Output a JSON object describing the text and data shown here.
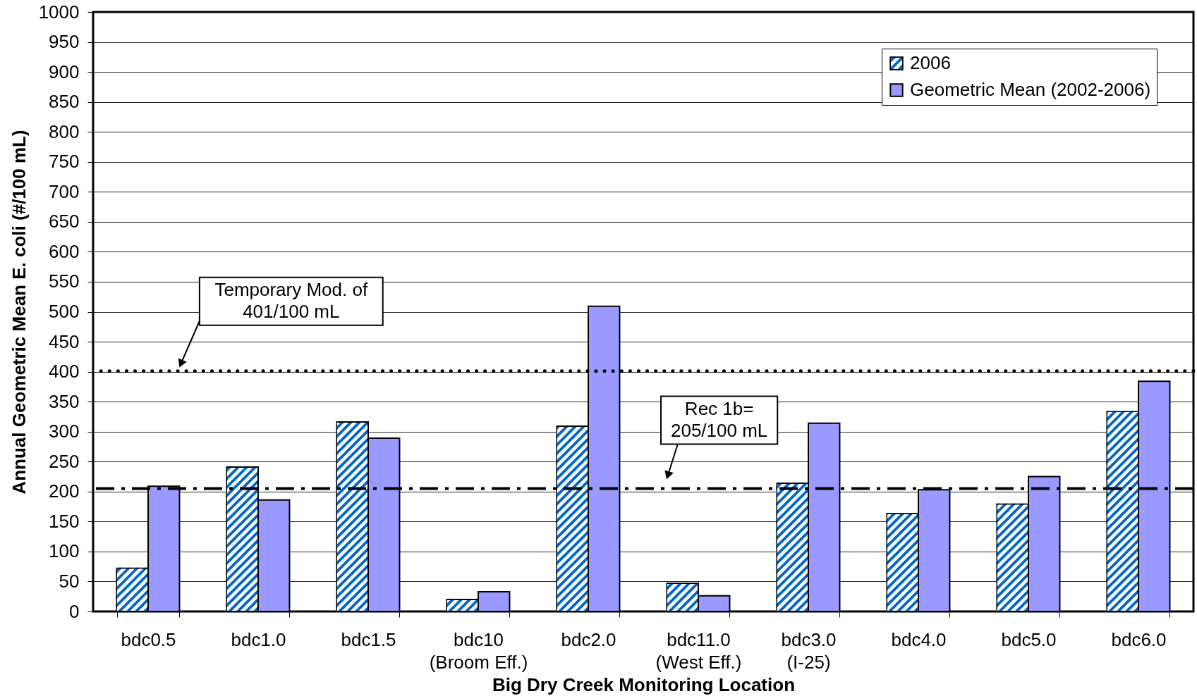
{
  "chart_data": {
    "type": "bar",
    "xlabel": "Big Dry Creek Monitoring Location",
    "ylabel": "Annual Geometric Mean E. coli (#/100 mL)",
    "categories": [
      "bdc0.5",
      "bdc1.0",
      "bdc1.5",
      "bdc10 (Broom Eff.)",
      "bdc2.0",
      "bdc11.0 (West Eff.)",
      "bdc3.0 (I-25)",
      "bdc4.0",
      "bdc5.0",
      "bdc6.0"
    ],
    "series": [
      {
        "name": "2006",
        "color": "#0066cc",
        "values": [
          72,
          241,
          316,
          20,
          309,
          47,
          214,
          163,
          179,
          333
        ]
      },
      {
        "name": "Geometric Mean (2002-2006)",
        "color": "#9999ff",
        "values": [
          209,
          186,
          289,
          33,
          509,
          26,
          314,
          203,
          225,
          384
        ]
      }
    ],
    "ylim": [
      0,
      1000
    ],
    "yticks": [
      0,
      50,
      100,
      150,
      200,
      250,
      300,
      350,
      400,
      450,
      500,
      550,
      600,
      650,
      700,
      750,
      800,
      850,
      900,
      950,
      1000
    ],
    "grid": "y",
    "legend": "top right",
    "ref_lines": [
      {
        "axis": "y",
        "value": 401,
        "label": "Temporary Mod. of\n401/100 mL",
        "color": "#000000",
        "line_style": "dotted"
      },
      {
        "axis": "y",
        "value": 205,
        "label": "Rec 1b=\n205/100 mL",
        "color": "#000000",
        "line_style": "dashdot"
      }
    ]
  }
}
